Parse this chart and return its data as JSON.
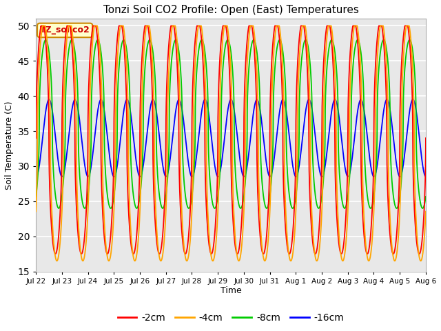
{
  "title": "Tonzi Soil CO2 Profile: Open (East) Temperatures",
  "ylabel": "Soil Temperature (C)",
  "xlabel": "Time",
  "ylim": [
    15,
    51
  ],
  "yticks": [
    15,
    20,
    25,
    30,
    35,
    40,
    45,
    50
  ],
  "colors": {
    "-2cm": "#ff0000",
    "-4cm": "#ffa500",
    "-8cm": "#00cc00",
    "-16cm": "#0000ff"
  },
  "legend_label": "TZ_soilco2",
  "legend_box_facecolor": "#ffffcc",
  "legend_box_edgecolor": "#cc8800",
  "plot_bg": "#e8e8e8",
  "grid_color": "#ffffff",
  "xtick_labels": [
    "Jul 22",
    "Jul 23",
    "Jul 24",
    "Jul 25",
    "Jul 26",
    "Jul 27",
    "Jul 28",
    "Jul 29",
    "Jul 30",
    "Jul 31",
    "Aug 1",
    "Aug 2",
    "Aug 3",
    "Aug 4",
    "Aug 5",
    "Aug 6"
  ],
  "n_days": 15,
  "pts_per_day": 480,
  "cm2_mean": 34.0,
  "cm2_amp": 16.5,
  "cm2_phase": 0.0,
  "cm2_min": 15.0,
  "cm2_max": 50.0,
  "cm4_mean": 33.5,
  "cm4_amp": 17.0,
  "cm4_phase": 0.35,
  "cm4_min": 15.0,
  "cm4_max": 50.0,
  "cm8_mean": 36.0,
  "cm8_amp": 12.0,
  "cm8_phase": 0.8,
  "cm8_min": 23.0,
  "cm8_max": 50.0,
  "cm16_mean": 34.0,
  "cm16_amp": 5.5,
  "cm16_phase": 1.6,
  "cm16_min": 27.0,
  "cm16_max": 40.5
}
